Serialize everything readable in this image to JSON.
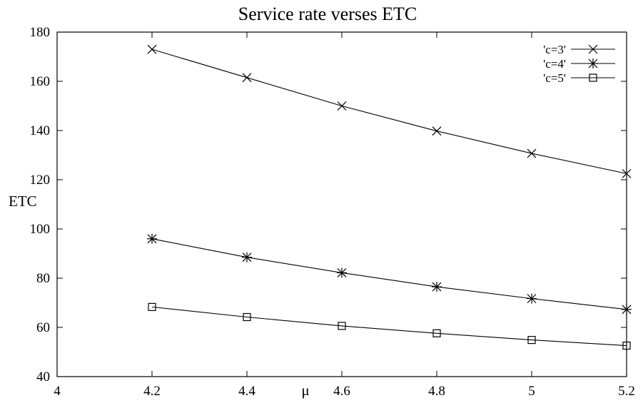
{
  "chart_data": {
    "type": "line",
    "title": "Service rate verses ETC",
    "xlabel": "μ",
    "ylabel": "ETC",
    "xlim": [
      4,
      5.2
    ],
    "ylim": [
      40,
      180
    ],
    "xticks": [
      4,
      4.2,
      4.4,
      4.6,
      4.8,
      5,
      5.2
    ],
    "xtick_labels": [
      "4",
      "4.2",
      "4.4",
      "4.6",
      "4.8",
      "5",
      "5.2"
    ],
    "yticks": [
      40,
      60,
      80,
      100,
      120,
      140,
      160,
      180
    ],
    "ytick_labels": [
      "40",
      "60",
      "80",
      "100",
      "120",
      "140",
      "160",
      "180"
    ],
    "grid": false,
    "legend_position": "top-right",
    "x": [
      4.2,
      4.4,
      4.6,
      4.8,
      5.0,
      5.2
    ],
    "series": [
      {
        "name": "'c=3'",
        "marker": "x",
        "values": [
          173,
          161.5,
          150,
          139.8,
          130.7,
          122.5
        ]
      },
      {
        "name": "'c=4'",
        "marker": "asterisk",
        "values": [
          96,
          88.5,
          82.2,
          76.5,
          71.7,
          67.3
        ]
      },
      {
        "name": "'c=5'",
        "marker": "square",
        "values": [
          68.3,
          64.2,
          60.6,
          57.6,
          54.9,
          52.6
        ]
      }
    ]
  }
}
